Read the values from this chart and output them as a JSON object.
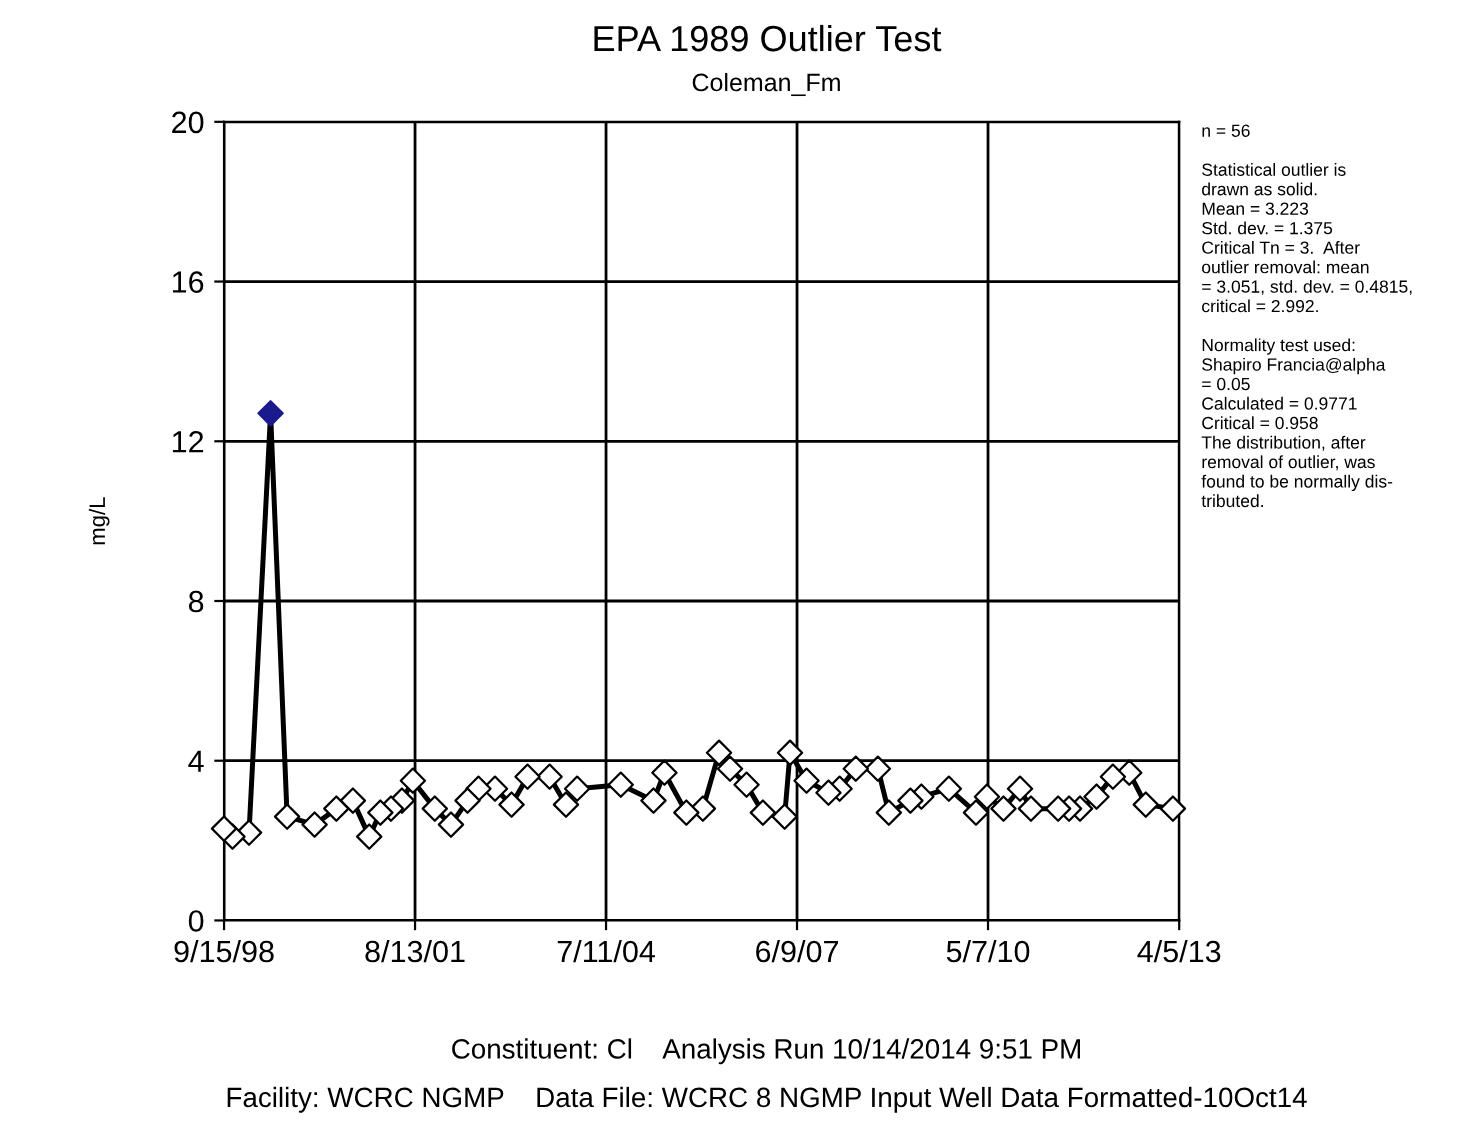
{
  "chart_data": {
    "type": "line",
    "title": "EPA 1989 Outlier Test",
    "subtitle": "Coleman_Fm",
    "ylabel": "mg/L",
    "x": [
      "1998-09-15",
      "1998-11",
      "1999-02",
      "1999-06",
      "1999-09",
      "2000-02",
      "2000-06",
      "2000-09",
      "2000-12",
      "2001-02",
      "2001-04",
      "2001-06",
      "2001-08",
      "2001-12",
      "2002-03",
      "2002-06",
      "2002-08",
      "2002-11",
      "2003-02",
      "2003-05",
      "2003-09",
      "2003-12",
      "2004-02",
      "2004-10",
      "2005-04",
      "2005-06",
      "2005-10",
      "2006-01",
      "2006-04",
      "2006-06",
      "2006-09",
      "2006-12",
      "2007-04",
      "2007-05",
      "2007-08",
      "2007-12",
      "2008-02",
      "2008-05",
      "2008-09",
      "2008-11",
      "2009-03",
      "2009-05",
      "2009-10",
      "2010-03",
      "2010-05",
      "2010-08",
      "2010-11",
      "2011-01",
      "2011-06",
      "2011-08",
      "2011-10",
      "2012-01",
      "2012-04",
      "2012-07",
      "2012-10",
      "2013-03"
    ],
    "series": [
      {
        "color": "#000000",
        "values": [
          2.3,
          2.1,
          2.2,
          12.7,
          2.6,
          2.4,
          2.8,
          3.0,
          2.1,
          2.7,
          2.8,
          3.0,
          3.5,
          2.8,
          2.4,
          3.0,
          3.3,
          3.3,
          2.9,
          3.6,
          3.6,
          2.9,
          3.3,
          3.4,
          3.0,
          3.7,
          2.7,
          2.8,
          4.2,
          3.8,
          3.4,
          2.7,
          2.6,
          4.2,
          3.5,
          3.2,
          3.3,
          3.8,
          3.8,
          2.7,
          3.0,
          3.1,
          3.3,
          2.7,
          3.1,
          2.8,
          3.3,
          2.8,
          2.8,
          2.8,
          2.8,
          3.1,
          3.6,
          3.7,
          2.9,
          2.8
        ],
        "colors": [
          "#ffffff",
          "#ffffff",
          "#ffffff",
          "#1a1a8c",
          "#ffffff",
          "#ffffff",
          "#ffffff",
          "#ffffff",
          "#ffffff",
          "#ffffff",
          "#ffffff",
          "#ffffff",
          "#ffffff",
          "#ffffff",
          "#ffffff",
          "#ffffff",
          "#ffffff",
          "#ffffff",
          "#ffffff",
          "#ffffff",
          "#ffffff",
          "#ffffff",
          "#ffffff",
          "#ffffff",
          "#ffffff",
          "#ffffff",
          "#ffffff",
          "#ffffff",
          "#ffffff",
          "#ffffff",
          "#ffffff",
          "#ffffff",
          "#ffffff",
          "#ffffff",
          "#ffffff",
          "#ffffff",
          "#ffffff",
          "#ffffff",
          "#ffffff",
          "#ffffff",
          "#ffffff",
          "#ffffff",
          "#ffffff",
          "#ffffff",
          "#ffffff",
          "#ffffff",
          "#ffffff",
          "#ffffff",
          "#ffffff",
          "#ffffff",
          "#ffffff",
          "#ffffff",
          "#ffffff",
          "#ffffff",
          "#ffffff",
          "#ffffff"
        ]
      }
    ],
    "xlim": [
      "1998-09-15",
      "2013-04-05"
    ],
    "xticks": [
      {
        "value": "1998-09-15",
        "label": "9/15/98"
      },
      {
        "value": "2001-08-13",
        "label": "8/13/01"
      },
      {
        "value": "2004-07-11",
        "label": "7/11/04"
      },
      {
        "value": "2007-06-09",
        "label": "6/9/07"
      },
      {
        "value": "2010-05-07",
        "label": "5/7/10"
      },
      {
        "value": "2013-04-05",
        "label": "4/5/13"
      }
    ],
    "ylim": [
      0,
      20
    ],
    "yticks": [
      0,
      4,
      8,
      12,
      16,
      20
    ],
    "grid": true,
    "marker": "diamond",
    "line_style": "solid",
    "legend": false,
    "annotations": [
      "n = 56\n\nStatistical outlier is\ndrawn as solid.\nMean = 3.223\nStd. dev. = 1.375\nCritical Tn = 3.  After\noutlier removal: mean\n= 3.051, std. dev. = 0.4815,\ncritical = 2.992.\n\nNormality test used:\nShapiro Francia@alpha\n= 0.05\nCalculated = 0.9771\nCritical = 0.958\nThe distribution, after\nremoval of outlier, was\nfound to be normally dis-\ntributed.",
      "Constituent: Cl    Analysis Run 10/14/2014 9:51 PM",
      "Facility: WCRC NGMP    Data File: WCRC 8 NGMP Input Well Data Formatted-10Oct14"
    ]
  }
}
